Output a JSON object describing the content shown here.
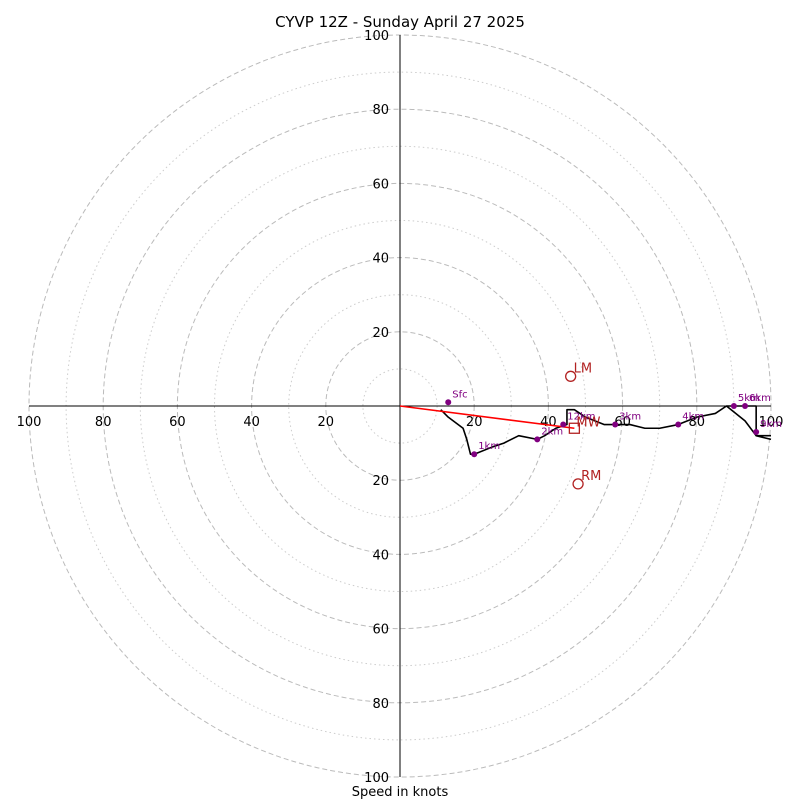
{
  "chart_data": {
    "type": "hodograph",
    "title": "CYVP 12Z - Sunday April 27 2025",
    "xlabel": "Speed in knots",
    "range": [
      -100,
      100
    ],
    "rings_major": [
      20,
      40,
      60,
      80,
      100
    ],
    "rings_minor": [
      10,
      30,
      50,
      70,
      90
    ],
    "ticks_x": {
      "values": [
        -100,
        -80,
        -60,
        -40,
        -20,
        20,
        40,
        60,
        80,
        100
      ],
      "labels": [
        "100",
        "80",
        "60",
        "40",
        "20",
        "20",
        "40",
        "60",
        "80",
        "100"
      ]
    },
    "ticks_y": {
      "values": [
        100,
        80,
        60,
        40,
        20,
        -20,
        -40,
        -60,
        -80,
        -100
      ],
      "labels": [
        "100",
        "80",
        "60",
        "40",
        "20",
        "20",
        "40",
        "60",
        "80",
        "100"
      ]
    },
    "trace": [
      [
        11,
        -1
      ],
      [
        13,
        -3
      ],
      [
        17,
        -6
      ],
      [
        18,
        -9
      ],
      [
        19,
        -13
      ],
      [
        20,
        -13
      ],
      [
        25,
        -11
      ],
      [
        28,
        -10
      ],
      [
        32,
        -8
      ],
      [
        37,
        -9
      ],
      [
        39,
        -8
      ],
      [
        42,
        -6
      ],
      [
        45,
        -5
      ],
      [
        45,
        -1
      ],
      [
        47,
        -1
      ],
      [
        50,
        -3
      ],
      [
        55,
        -5
      ],
      [
        58,
        -5
      ],
      [
        62,
        -5
      ],
      [
        66,
        -6
      ],
      [
        70,
        -6
      ],
      [
        75,
        -5
      ],
      [
        80,
        -3
      ],
      [
        85,
        -2
      ],
      [
        88,
        0
      ],
      [
        90,
        0
      ],
      [
        92,
        0
      ],
      [
        96,
        0
      ],
      [
        96,
        -7
      ],
      [
        96,
        -8
      ],
      [
        100,
        -9
      ]
    ],
    "trace_secondary": [
      [
        88,
        0
      ],
      [
        93,
        -4
      ],
      [
        96,
        -8
      ],
      [
        100,
        -8
      ]
    ],
    "heights": [
      {
        "label": "Sfc",
        "u": 13,
        "v": 1
      },
      {
        "label": "1km",
        "u": 20,
        "v": -13
      },
      {
        "label": "2km",
        "u": 37,
        "v": -9
      },
      {
        "label": "12km",
        "u": 44,
        "v": -5
      },
      {
        "label": "3km",
        "u": 58,
        "v": -5
      },
      {
        "label": "4km",
        "u": 75,
        "v": -5
      },
      {
        "label": "5km",
        "u": 90,
        "v": 0
      },
      {
        "label": "6km",
        "u": 93,
        "v": 0
      },
      {
        "label": "9km",
        "u": 96,
        "v": -7
      }
    ],
    "storm_motion": {
      "LM": {
        "label": "LM",
        "u": 46,
        "v": 8
      },
      "RM": {
        "label": "RM",
        "u": 48,
        "v": -21
      },
      "MW": {
        "label": "MW",
        "u": 47,
        "v": -6
      }
    },
    "shear_vector": {
      "from": [
        0,
        0
      ],
      "to": [
        47,
        -6
      ]
    },
    "colors": {
      "trace": "#000000",
      "height_marker": "#800080",
      "storm_marker": "#b22222",
      "shear_vector": "#ff0000",
      "grid": "#bbbbbb"
    }
  }
}
